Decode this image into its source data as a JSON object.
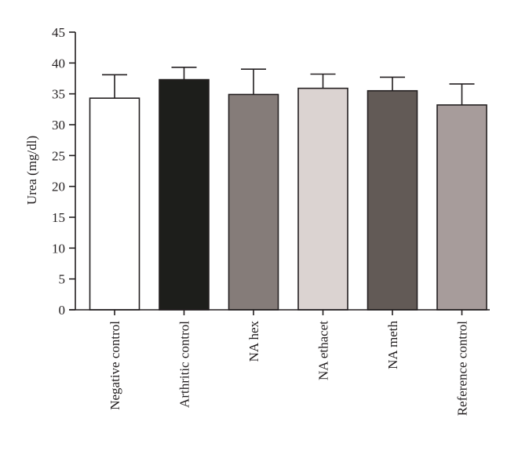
{
  "chart_data": {
    "type": "bar",
    "title": "",
    "xlabel": "",
    "ylabel": "Urea (mg/dl)",
    "ylim": [
      0,
      45
    ],
    "yticks": [
      0,
      5,
      10,
      15,
      20,
      25,
      30,
      35,
      40,
      45
    ],
    "grid": false,
    "legend": "none",
    "categories": [
      "Negative control",
      "Arthritic control",
      "NA hex",
      "NA ethacet",
      "NA meth",
      "Reference control"
    ],
    "values": [
      34.3,
      37.3,
      34.9,
      35.9,
      35.5,
      33.2
    ],
    "errors": [
      3.8,
      2.0,
      4.1,
      2.3,
      2.2,
      3.4
    ],
    "colors": [
      "#ffffff",
      "#1d1e1b",
      "#857c79",
      "#dbd3d1",
      "#625a56",
      "#a79c9b"
    ]
  }
}
